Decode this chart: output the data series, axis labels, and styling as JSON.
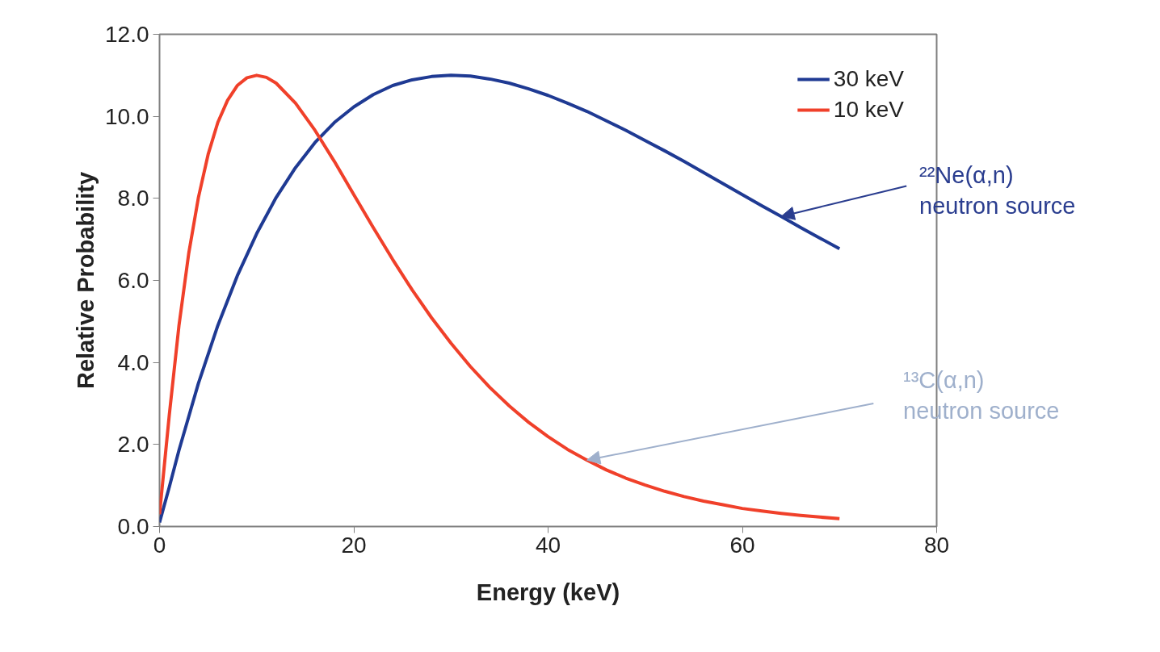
{
  "chart_data": {
    "type": "line",
    "xlabel": "Energy (keV)",
    "ylabel": "Relative Probability",
    "xlim": [
      0,
      80
    ],
    "ylim": [
      0,
      12
    ],
    "xticks": [
      0,
      20,
      40,
      60,
      80
    ],
    "yticks": [
      {
        "value": 0,
        "label": "0.0"
      },
      {
        "value": 2,
        "label": "2.0"
      },
      {
        "value": 4,
        "label": "4.0"
      },
      {
        "value": 6,
        "label": "6.0"
      },
      {
        "value": 8,
        "label": "8.0"
      },
      {
        "value": 10,
        "label": "10.0"
      },
      {
        "value": 12,
        "label": "12.0"
      }
    ],
    "grid": false,
    "legend": "top right",
    "marker": "none",
    "line_style": "solid",
    "series": [
      {
        "name": "30 keV",
        "color": "#1f3a93",
        "x": [
          0,
          1,
          2,
          4,
          6,
          8,
          10,
          12,
          14,
          16,
          18,
          20,
          22,
          24,
          26,
          28,
          30,
          32,
          34,
          36,
          38,
          40,
          42,
          44,
          46,
          48,
          50,
          52,
          54,
          56,
          58,
          60,
          62,
          64,
          66,
          68,
          70
        ],
        "values": [
          0.1,
          0.96,
          1.86,
          3.49,
          4.9,
          6.11,
          7.14,
          8.02,
          8.75,
          9.36,
          9.85,
          10.23,
          10.53,
          10.75,
          10.89,
          10.97,
          11.0,
          10.98,
          10.91,
          10.81,
          10.67,
          10.51,
          10.32,
          10.12,
          9.89,
          9.66,
          9.41,
          9.16,
          8.9,
          8.63,
          8.36,
          8.09,
          7.82,
          7.56,
          7.29,
          7.03,
          6.77
        ]
      },
      {
        "name": "10 keV",
        "color": "#f0402a",
        "x": [
          0,
          1,
          2,
          3,
          4,
          5,
          6,
          7,
          8,
          9,
          10,
          11,
          12,
          14,
          16,
          18,
          20,
          22,
          24,
          26,
          28,
          30,
          32,
          34,
          36,
          38,
          40,
          42,
          44,
          46,
          48,
          50,
          52,
          54,
          56,
          58,
          60,
          62,
          64,
          66,
          68,
          70
        ],
        "values": [
          0.3,
          2.71,
          4.9,
          6.65,
          8.02,
          9.07,
          9.85,
          10.39,
          10.75,
          10.94,
          11.0,
          10.95,
          10.81,
          10.32,
          9.66,
          8.9,
          8.09,
          7.29,
          6.51,
          5.77,
          5.09,
          4.47,
          3.9,
          3.39,
          2.94,
          2.54,
          2.19,
          1.88,
          1.62,
          1.38,
          1.18,
          1.01,
          0.86,
          0.73,
          0.62,
          0.53,
          0.44,
          0.38,
          0.32,
          0.27,
          0.23,
          0.19
        ]
      }
    ],
    "annotations": [
      {
        "text": "²²Ne(α,n)\nneutron source",
        "x": 64,
        "y": 7.56
      },
      {
        "text": "¹³C(α,n)\nneutron source",
        "x": 44,
        "y": 1.62
      }
    ]
  }
}
